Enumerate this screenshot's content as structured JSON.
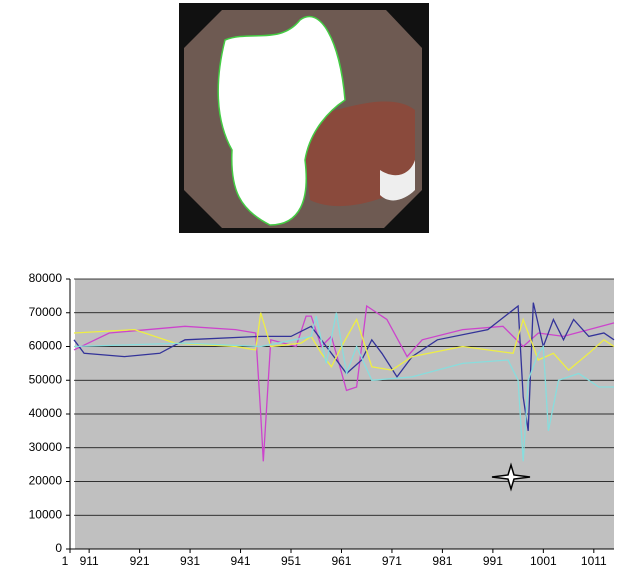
{
  "chart_data": {
    "type": "line",
    "x_axis_start_label": "1",
    "xlim": [
      908,
      1015
    ],
    "xticks": [
      911,
      921,
      931,
      941,
      951,
      961,
      971,
      981,
      991,
      1001,
      1011
    ],
    "ylim": [
      0,
      80000
    ],
    "yticks": [
      0,
      10000,
      20000,
      30000,
      40000,
      50000,
      60000,
      70000,
      80000
    ],
    "grid": true,
    "series": [
      {
        "color": "#cc44cc",
        "x": [
          908,
          915,
          930,
          940,
          944,
          945,
          945.5,
          947,
          952,
          954,
          955,
          957,
          959,
          962,
          964,
          966,
          970,
          974,
          977,
          985,
          993,
          997,
          1000,
          1005,
          1010,
          1015
        ],
        "values": [
          59000,
          64000,
          66000,
          65000,
          64000,
          40000,
          26000,
          62000,
          60000,
          69000,
          69000,
          60000,
          63000,
          47000,
          48000,
          72000,
          68000,
          57000,
          62000,
          65000,
          66000,
          60000,
          64000,
          63000,
          65000,
          67000
        ]
      },
      {
        "color": "#333399",
        "x": [
          908,
          910,
          918,
          925,
          930,
          945,
          951,
          955,
          958,
          962,
          965,
          967,
          969,
          972,
          975,
          980,
          990,
          996,
          997,
          998,
          999,
          1001,
          1003,
          1005,
          1007,
          1010,
          1013,
          1015
        ],
        "values": [
          62000,
          58000,
          57000,
          58000,
          62000,
          63000,
          63000,
          66000,
          60000,
          52000,
          56000,
          62000,
          58000,
          51000,
          57000,
          62000,
          65000,
          72000,
          45000,
          35000,
          73000,
          60000,
          68000,
          62000,
          68000,
          63000,
          64000,
          62000
        ]
      },
      {
        "color": "#eeee44",
        "x": [
          908,
          920,
          928,
          940,
          944,
          945,
          947,
          953,
          955,
          957,
          959,
          961,
          964,
          967,
          971,
          975,
          985,
          995,
          997,
          1000,
          1003,
          1006,
          1010,
          1013,
          1015
        ],
        "values": [
          64000,
          65000,
          61000,
          60000,
          59000,
          70000,
          60000,
          61000,
          63000,
          58000,
          54000,
          60000,
          68000,
          54000,
          53000,
          57000,
          60000,
          58000,
          68000,
          56000,
          58000,
          53000,
          58000,
          62000,
          60000
        ]
      },
      {
        "color": "#88dddd",
        "x": [
          908,
          930,
          945,
          955,
          956,
          958,
          960,
          962,
          964,
          967,
          975,
          985,
          994,
          996,
          997,
          998,
          1000,
          1001,
          1002,
          1004,
          1008,
          1012,
          1015
        ],
        "values": [
          60000,
          61000,
          60000,
          63000,
          69000,
          55000,
          70000,
          52000,
          60000,
          50000,
          51000,
          55000,
          56000,
          50000,
          26000,
          50000,
          58000,
          60000,
          35000,
          50000,
          52000,
          48000,
          48000
        ]
      }
    ]
  }
}
